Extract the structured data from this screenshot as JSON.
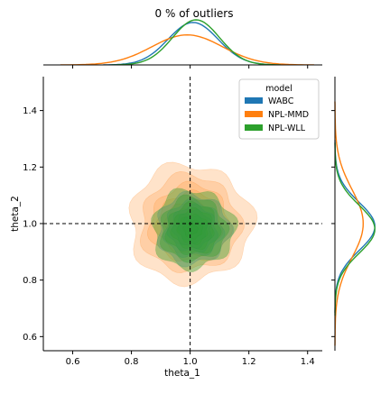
{
  "chart_data": {
    "type": "jointplot-kde",
    "title": "0 % of outliers",
    "xlabel": "theta_1",
    "ylabel": "theta_2",
    "xlim": [
      0.5,
      1.45
    ],
    "ylim": [
      0.55,
      1.52
    ],
    "xticks": [
      0.6,
      0.8,
      1.0,
      1.2,
      1.4
    ],
    "xtick_labels": [
      "0.6",
      "0.8",
      "1.0",
      "1.2",
      "1.4"
    ],
    "yticks": [
      0.6,
      0.8,
      1.0,
      1.2,
      1.4
    ],
    "ytick_labels": [
      "0.6",
      "0.8",
      "1.0",
      "1.2",
      "1.4"
    ],
    "reference_lines": {
      "x": 1.0,
      "y": 1.0,
      "style": "dashed"
    },
    "legend": {
      "title": "model",
      "position": "top-right",
      "entries": [
        "WABC",
        "NPL-MMD",
        "NPL-WLL"
      ]
    },
    "series": [
      {
        "name": "WABC",
        "color": "#1f77b4",
        "joint_center": [
          1.01,
          0.98
        ],
        "joint_spread": [
          0.085,
          0.085
        ],
        "marginal_x": {
          "mean": 1.01,
          "sd": 0.085
        },
        "marginal_y": {
          "mean": 0.99,
          "sd": 0.085
        }
      },
      {
        "name": "NPL-MMD",
        "color": "#ff7f0e",
        "joint_center": [
          1.0,
          1.0
        ],
        "joint_spread": [
          0.13,
          0.13
        ],
        "marginal_x": {
          "mean": 0.99,
          "sd": 0.12
        },
        "marginal_y": {
          "mean": 1.0,
          "sd": 0.12
        }
      },
      {
        "name": "NPL-WLL",
        "color": "#2ca02c",
        "joint_center": [
          1.01,
          0.98
        ],
        "joint_spread": [
          0.09,
          0.09
        ],
        "marginal_x": {
          "mean": 1.02,
          "sd": 0.08
        },
        "marginal_y": {
          "mean": 0.98,
          "sd": 0.085
        }
      }
    ]
  }
}
